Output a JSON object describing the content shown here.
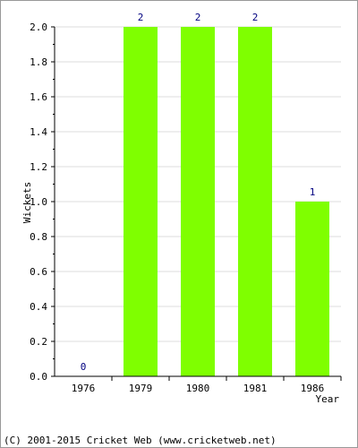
{
  "chart_data": {
    "type": "bar",
    "categories": [
      "1976",
      "1979",
      "1980",
      "1981",
      "1986"
    ],
    "values": [
      0,
      2,
      2,
      2,
      1
    ],
    "data_labels": [
      "0",
      "2",
      "2",
      "2",
      "1"
    ],
    "title": "",
    "xlabel": "Year",
    "ylabel": "Wickets",
    "ylim": [
      0,
      2.0
    ],
    "yticks": [
      "0.0",
      "0.2",
      "0.4",
      "0.6",
      "0.8",
      "1.0",
      "1.2",
      "1.4",
      "1.6",
      "1.8",
      "2.0"
    ],
    "grid": true,
    "bar_color": "#7fff00",
    "grid_color": "#dddddd"
  },
  "footer": "(C) 2001-2015 Cricket Web (www.cricketweb.net)"
}
